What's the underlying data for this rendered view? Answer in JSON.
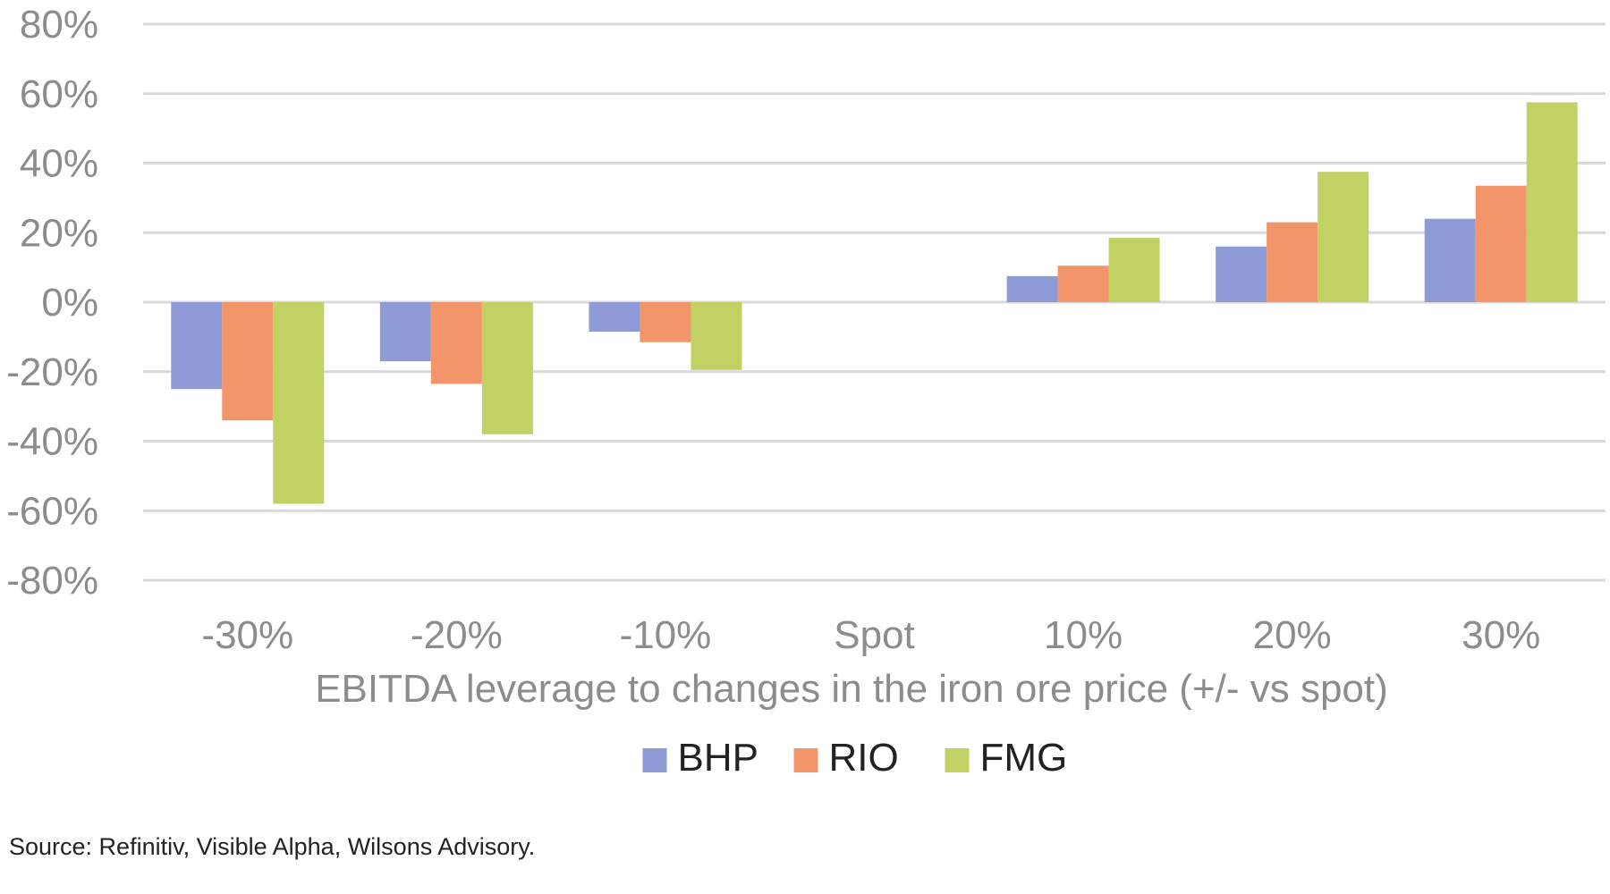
{
  "chart_data": {
    "type": "bar",
    "title": "",
    "xlabel": "EBITDA leverage to changes in the iron ore price (+/- vs spot)",
    "ylabel": "",
    "categories": [
      "-30%",
      "-20%",
      "-10%",
      "Spot",
      "10%",
      "20%",
      "30%"
    ],
    "ylim": [
      -80,
      80
    ],
    "y_ticks": [
      80,
      60,
      40,
      20,
      0,
      -20,
      -40,
      -60,
      -80
    ],
    "y_tick_labels": [
      "80%",
      "60%",
      "40%",
      "20%",
      "0%",
      "-20%",
      "-40%",
      "-60%",
      "-80%"
    ],
    "grid": true,
    "legend_position": "bottom",
    "series": [
      {
        "name": "BHP",
        "color": "#8f9bd6",
        "values": [
          -25,
          -17,
          -8.5,
          0,
          7.5,
          16,
          24
        ]
      },
      {
        "name": "RIO",
        "color": "#f3956a",
        "values": [
          -34,
          -23.5,
          -11.5,
          0,
          10.5,
          23,
          33.5
        ]
      },
      {
        "name": "FMG",
        "color": "#c2d164",
        "values": [
          -58,
          -38,
          -19.5,
          0,
          18.5,
          37.5,
          57.5
        ]
      }
    ]
  },
  "source_note": "Source: Refinitiv, Visible Alpha, Wilsons Advisory."
}
